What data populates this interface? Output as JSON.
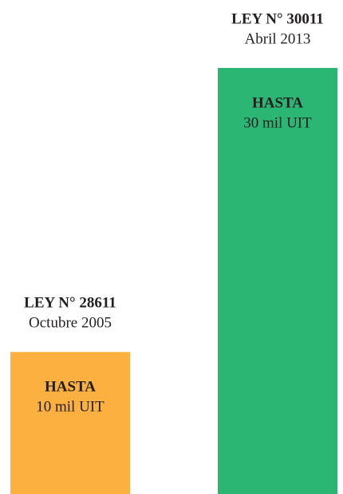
{
  "chart_data": {
    "type": "bar",
    "categories": [
      "LEY N° 28611",
      "LEY N° 30011"
    ],
    "dates": [
      "Octubre 2005",
      "Abril 2013"
    ],
    "bar_prefix": "HASTA",
    "values": [
      10,
      30
    ],
    "value_labels": [
      "10 mil UIT",
      "30 mil UIT"
    ],
    "colors": [
      "#fbb040",
      "#2bb673"
    ]
  }
}
